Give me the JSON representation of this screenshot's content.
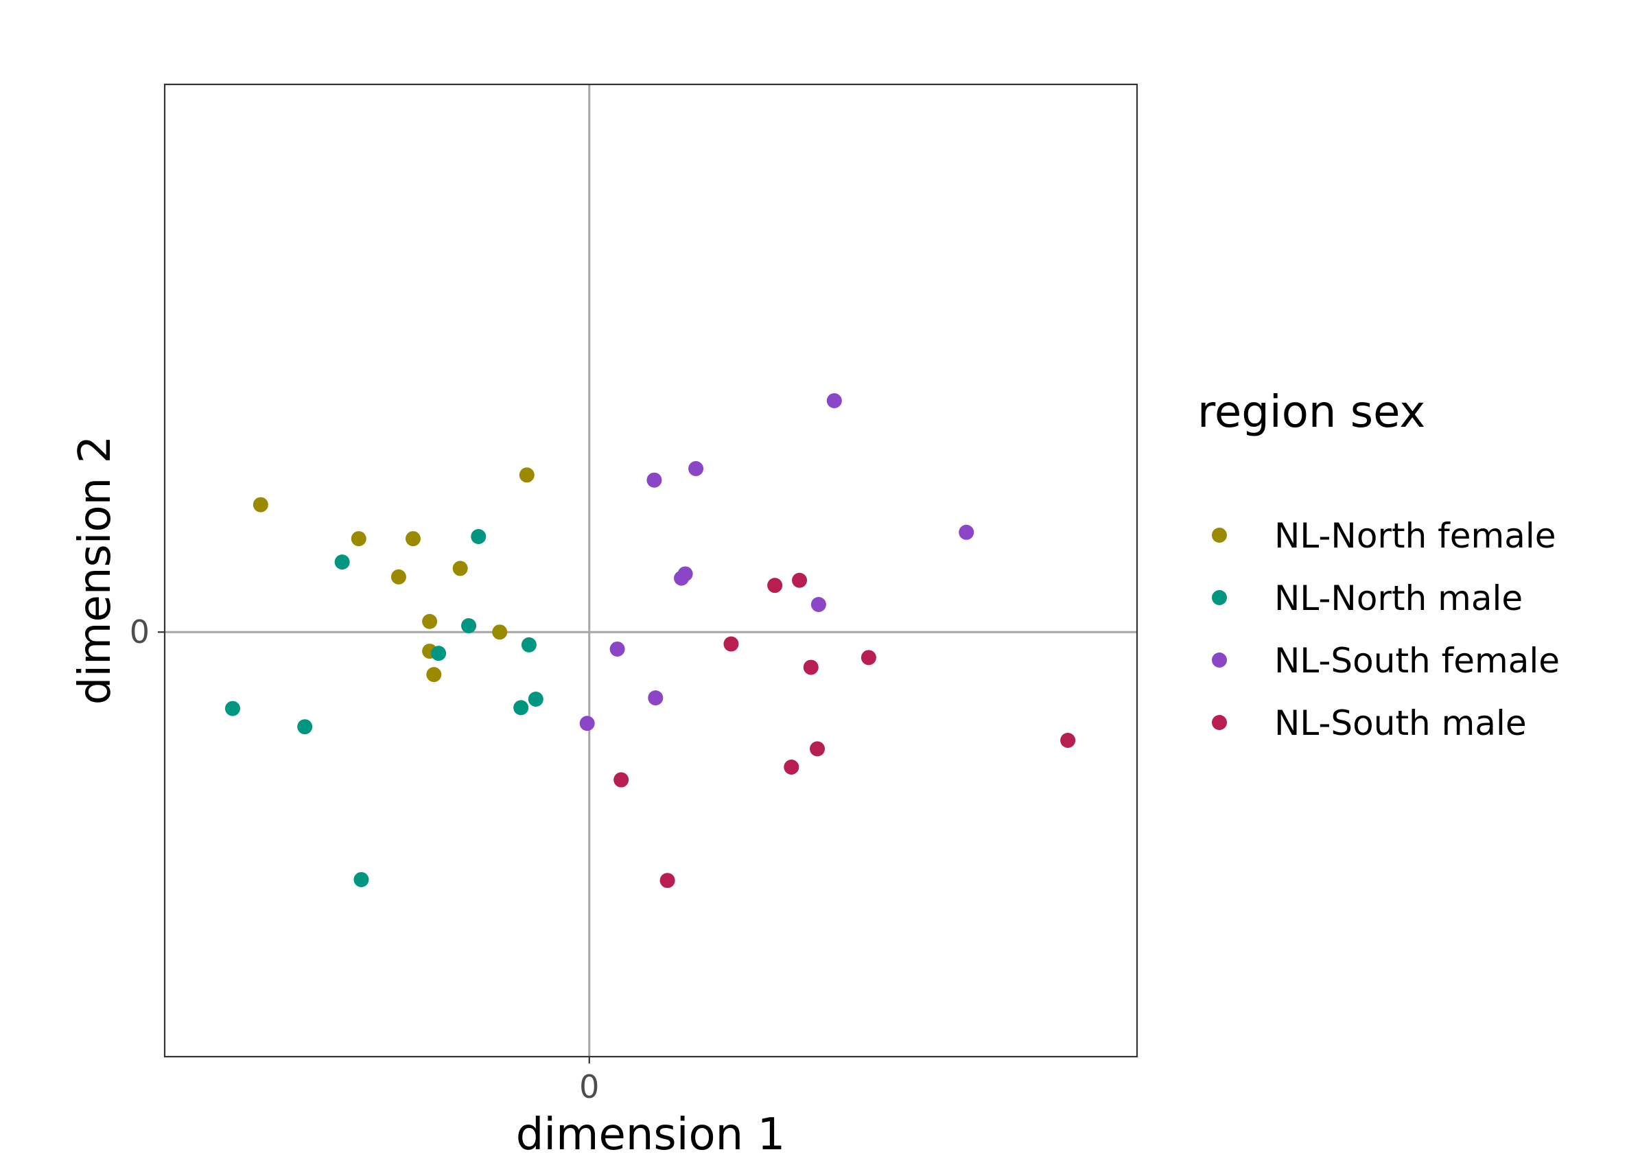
{
  "chart_data": {
    "type": "scatter",
    "title": "",
    "xlabel": "dimension 1",
    "ylabel": "dimension 2",
    "xlim": [
      -1.0,
      1.29
    ],
    "ylim": [
      -1.0,
      1.29
    ],
    "x_ticks": [
      {
        "value": 0,
        "label": "0"
      }
    ],
    "y_ticks": [
      {
        "value": 0,
        "label": "0"
      }
    ],
    "reference_lines": {
      "x": 0,
      "y": 0
    },
    "grid": false,
    "legend": {
      "title": "region sex",
      "position": "right"
    },
    "series": [
      {
        "name": "NL-North female",
        "color": "#9a8a00",
        "points": [
          {
            "x": -0.774,
            "y": 0.3
          },
          {
            "x": -0.543,
            "y": 0.22
          },
          {
            "x": -0.415,
            "y": 0.22
          },
          {
            "x": -0.449,
            "y": 0.13
          },
          {
            "x": -0.304,
            "y": 0.15
          },
          {
            "x": -0.147,
            "y": 0.37
          },
          {
            "x": -0.376,
            "y": 0.025
          },
          {
            "x": -0.211,
            "y": 0.0
          },
          {
            "x": -0.376,
            "y": -0.045
          },
          {
            "x": -0.366,
            "y": -0.1
          }
        ]
      },
      {
        "name": "NL-North male",
        "color": "#009681",
        "points": [
          {
            "x": -0.582,
            "y": 0.165
          },
          {
            "x": -0.261,
            "y": 0.225
          },
          {
            "x": -0.284,
            "y": 0.015
          },
          {
            "x": -0.142,
            "y": -0.03
          },
          {
            "x": -0.355,
            "y": -0.05
          },
          {
            "x": -0.126,
            "y": -0.158
          },
          {
            "x": -0.161,
            "y": -0.178
          },
          {
            "x": -0.84,
            "y": -0.18
          },
          {
            "x": -0.67,
            "y": -0.223
          },
          {
            "x": -0.537,
            "y": -0.583
          }
        ]
      },
      {
        "name": "NL-South female",
        "color": "#8b46c8",
        "points": [
          {
            "x": 0.577,
            "y": 0.545
          },
          {
            "x": 0.153,
            "y": 0.358
          },
          {
            "x": 0.251,
            "y": 0.385
          },
          {
            "x": 0.888,
            "y": 0.235
          },
          {
            "x": 0.226,
            "y": 0.137
          },
          {
            "x": 0.217,
            "y": 0.127
          },
          {
            "x": 0.54,
            "y": 0.065
          },
          {
            "x": 0.066,
            "y": -0.04
          },
          {
            "x": 0.156,
            "y": -0.155
          },
          {
            "x": -0.005,
            "y": -0.215
          }
        ]
      },
      {
        "name": "NL-South male",
        "color": "#b81e50",
        "points": [
          {
            "x": 0.437,
            "y": 0.11
          },
          {
            "x": 0.495,
            "y": 0.122
          },
          {
            "x": 0.334,
            "y": -0.028
          },
          {
            "x": 0.658,
            "y": -0.06
          },
          {
            "x": 0.522,
            "y": -0.083
          },
          {
            "x": 1.127,
            "y": -0.255
          },
          {
            "x": 0.537,
            "y": -0.275
          },
          {
            "x": 0.476,
            "y": -0.318
          },
          {
            "x": 0.075,
            "y": -0.348
          },
          {
            "x": 0.184,
            "y": -0.585
          }
        ]
      }
    ]
  }
}
